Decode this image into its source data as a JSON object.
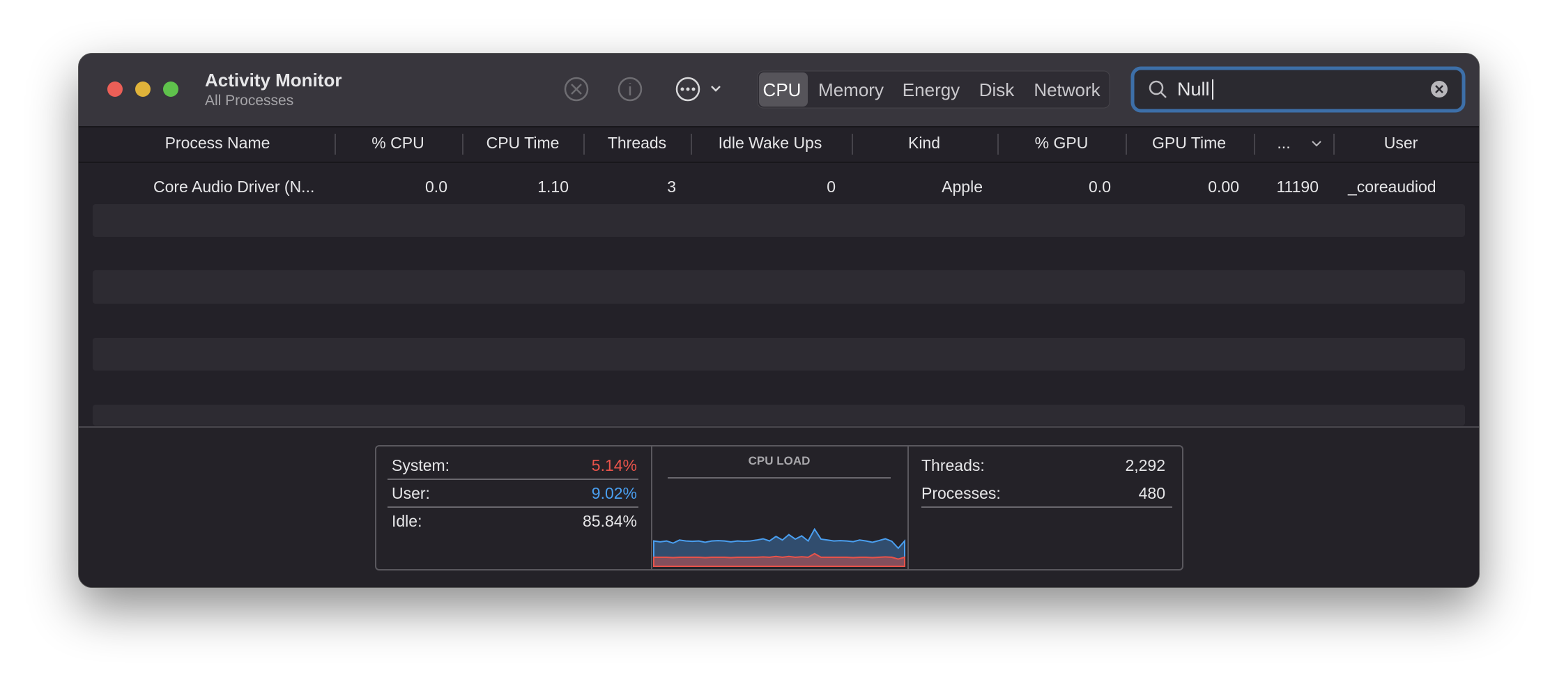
{
  "window": {
    "title": "Activity Monitor",
    "subtitle": "All Processes"
  },
  "tabs": [
    "CPU",
    "Memory",
    "Energy",
    "Disk",
    "Network"
  ],
  "search": "Null",
  "table": {
    "columns": [
      "Process Name",
      "% CPU",
      "CPU Time",
      "Threads",
      "Idle Wake Ups",
      "Kind",
      "% GPU",
      "GPU Time",
      "...",
      "User"
    ],
    "rows": [
      [
        "Core Audio Driver (N...",
        "0.0",
        "1.10",
        "3",
        "0",
        "Apple",
        "0.0",
        "0.00",
        "11190",
        "_coreaudiod"
      ]
    ]
  },
  "summary": {
    "left": [
      {
        "label": "System:",
        "value": "5.14%"
      },
      {
        "label": "User:",
        "value": "9.02%"
      },
      {
        "label": "Idle:",
        "value": "85.84%"
      }
    ],
    "graph": {
      "title": "CPU LOAD",
      "system": [
        5,
        5,
        5,
        4.8,
        5,
        5,
        5,
        5,
        4.8,
        5,
        5,
        5,
        4.8,
        5,
        5,
        5,
        5,
        5.2,
        5,
        5.5,
        5,
        5.5,
        5,
        5.3,
        5,
        7,
        5,
        5,
        5,
        5,
        5,
        4.8,
        5,
        5,
        4.8,
        5,
        5.2,
        5,
        4,
        5
      ],
      "user": [
        9,
        8.5,
        9,
        8,
        9.5,
        9,
        8.8,
        9,
        8.5,
        9,
        9.2,
        9,
        8.7,
        9,
        8.8,
        9,
        9.5,
        10,
        9,
        11,
        9.5,
        12,
        10,
        11.5,
        9,
        13.5,
        10,
        9.5,
        9,
        9.2,
        9,
        8.8,
        9.5,
        9,
        8.5,
        9.2,
        10,
        8.8,
        6,
        9
      ]
    },
    "right": [
      {
        "label": "Threads:",
        "value": "2,292"
      },
      {
        "label": "Processes:",
        "value": "480"
      }
    ]
  }
}
